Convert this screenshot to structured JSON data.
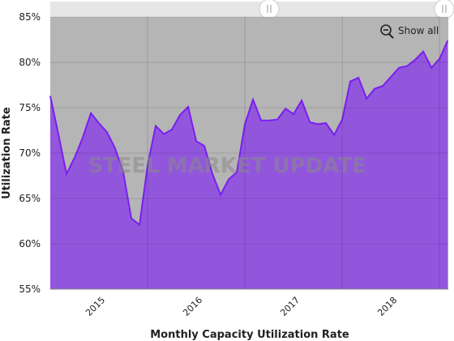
{
  "chart_data": {
    "type": "area",
    "title": "Monthly Capacity Utilization Rate",
    "y_label": "Utilization Rate",
    "button": "Show all",
    "watermark": "STEEL MARKET UPDATE",
    "x": [
      2015,
      2015.083,
      2015.167,
      2015.25,
      2015.333,
      2015.417,
      2015.5,
      2015.583,
      2015.667,
      2015.75,
      2015.833,
      2015.917,
      2016,
      2016.083,
      2016.167,
      2016.25,
      2016.333,
      2016.417,
      2016.5,
      2016.583,
      2016.667,
      2016.75,
      2016.833,
      2016.917,
      2017,
      2017.083,
      2017.167,
      2017.25,
      2017.333,
      2017.417,
      2017.5,
      2017.583,
      2017.667,
      2017.75,
      2017.833,
      2017.917,
      2018,
      2018.083,
      2018.167,
      2018.25,
      2018.333,
      2018.417,
      2018.5,
      2018.583,
      2018.667,
      2018.75,
      2018.833,
      2018.917,
      2019,
      2019.083
    ],
    "series": [
      {
        "name": "Utilization Rate",
        "color": "#7a1ef0",
        "fill": "#9256dd",
        "values": [
          76.3,
          72.1,
          67.7,
          69.5,
          71.7,
          74.4,
          73.3,
          72.3,
          70.5,
          67.9,
          62.8,
          62.1,
          68.6,
          73.0,
          72.1,
          72.6,
          74.2,
          75.1,
          71.3,
          70.8,
          67.7,
          65.4,
          67.1,
          67.9,
          73.2,
          75.9,
          73.6,
          73.6,
          73.7,
          74.9,
          74.3,
          75.8,
          73.4,
          73.2,
          73.3,
          72.0,
          73.7,
          77.9,
          78.3,
          76.0,
          77.1,
          77.4,
          78.4,
          79.4,
          79.6,
          80.3,
          81.2,
          79.4,
          80.4,
          82.4
        ]
      }
    ],
    "xlim": [
      2015,
      2019.09
    ],
    "xticks": [
      {
        "value": 2015.5,
        "label": "2015"
      },
      {
        "value": 2016.5,
        "label": "2016"
      },
      {
        "value": 2017.5,
        "label": "2017"
      },
      {
        "value": 2018.5,
        "label": "2018"
      }
    ],
    "xgrid": [
      2016,
      2017,
      2018,
      2019
    ],
    "ylim": [
      55,
      85
    ],
    "yticks": [
      {
        "value": 55,
        "label": "55%"
      },
      {
        "value": 60,
        "label": "60%"
      },
      {
        "value": 65,
        "label": "65%"
      },
      {
        "value": 70,
        "label": "70%"
      },
      {
        "value": 75,
        "label": "75%"
      },
      {
        "value": 80,
        "label": "80%"
      },
      {
        "value": 85,
        "label": "85%"
      }
    ],
    "grid": true,
    "plot_background": "#b5b5b5"
  }
}
